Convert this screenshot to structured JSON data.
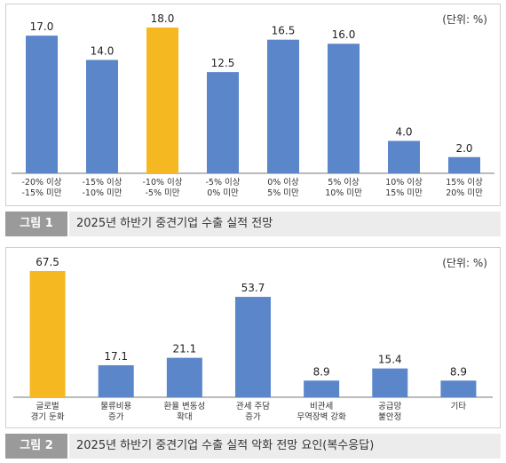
{
  "colors": {
    "bar": "#5b86c9",
    "highlight": "#f5b820",
    "axis": "#777777",
    "caption_bg": "#ececec",
    "caption_label_bg": "#9a9a9a"
  },
  "figure1": {
    "unit": "(단위: %)",
    "caption_label": "그림 1",
    "caption_title": "2025년 하반기 중견기업 수출 실적 전망"
  },
  "figure2": {
    "unit": "(단위: %)",
    "caption_label": "그림 2",
    "caption_title": "2025년 하반기 중견기업 수출 실적 악화 전망 요인(복수응답)"
  },
  "chart_data": [
    {
      "type": "bar",
      "categories": [
        [
          "-20% 이상",
          "-15% 미만"
        ],
        [
          "-15% 이상",
          "-10% 미만"
        ],
        [
          "-10% 이상",
          "-5% 미만"
        ],
        [
          "-5% 이상",
          "0% 미만"
        ],
        [
          "0% 이상",
          "5% 미만"
        ],
        [
          "5% 이상",
          "10% 미만"
        ],
        [
          "10% 이상",
          "15% 미만"
        ],
        [
          "15% 이상",
          "20% 미만"
        ]
      ],
      "values": [
        17.0,
        14.0,
        18.0,
        12.5,
        16.5,
        16.0,
        4.0,
        2.0
      ],
      "value_labels": [
        "17.0",
        "14.0",
        "18.0",
        "12.5",
        "16.5",
        "16.0",
        "4.0",
        "2.0"
      ],
      "highlight_index": 2,
      "ylim": [
        0,
        18
      ],
      "grid": false
    },
    {
      "type": "bar",
      "categories": [
        [
          "글로벌",
          "경기 둔화"
        ],
        [
          "물류비용",
          "증가"
        ],
        [
          "환율 변동성",
          "확대"
        ],
        [
          "관세 주담",
          "증가"
        ],
        [
          "비관세",
          "무역장벽 강화"
        ],
        [
          "공급망",
          "불안정"
        ],
        [
          "기타"
        ]
      ],
      "values": [
        67.5,
        17.1,
        21.1,
        53.7,
        8.9,
        15.4,
        8.9
      ],
      "value_labels": [
        "67.5",
        "17.1",
        "21.1",
        "53.7",
        "8.9",
        "15.4",
        "8.9"
      ],
      "highlight_index": 0,
      "ylim": [
        0,
        67.5
      ],
      "grid": false
    }
  ]
}
